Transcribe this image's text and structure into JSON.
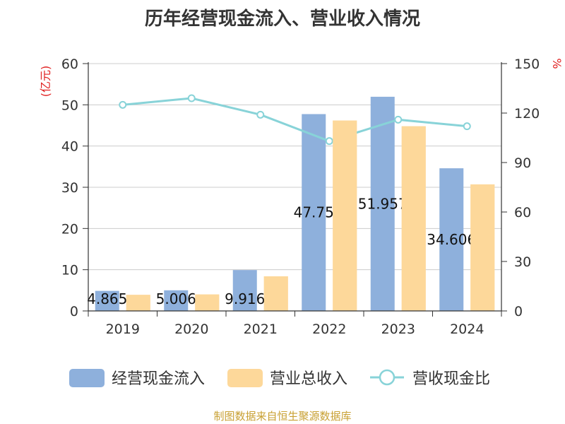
{
  "chart_data": {
    "type": "bar",
    "title": "历年经营现金流入、营业收入情况",
    "categories": [
      "2019",
      "2020",
      "2021",
      "2022",
      "2023",
      "2024"
    ],
    "y_left": {
      "unit": "(亿元)",
      "range": [
        0,
        60
      ],
      "ticks": [
        "0",
        "10",
        "20",
        "30",
        "40",
        "50",
        "60"
      ]
    },
    "y_right": {
      "unit": "%",
      "range": [
        0,
        150
      ],
      "ticks": [
        "0",
        "30",
        "60",
        "90",
        "120",
        "150"
      ]
    },
    "series": [
      {
        "name": "经营现金流入",
        "type": "bar",
        "axis": "left",
        "color": "#8eb0dc",
        "values": [
          4.865,
          5.006,
          9.916,
          47.75,
          51.957,
          34.606
        ],
        "labels": [
          "4.865",
          "5.006",
          "9.916",
          "47.75",
          "51.957",
          "34.606"
        ]
      },
      {
        "name": "营业总收入",
        "type": "bar",
        "axis": "left",
        "color": "#fdd89a",
        "values": [
          3.9,
          4.0,
          8.4,
          46.2,
          44.8,
          30.7
        ]
      },
      {
        "name": "营收现金比",
        "type": "line",
        "axis": "right",
        "color": "#88d3d8",
        "values": [
          125,
          129,
          119,
          103,
          116,
          112
        ]
      }
    ],
    "grid": true,
    "legend_position": "bottom"
  },
  "source": "制图数据来自恒生聚源数据库"
}
